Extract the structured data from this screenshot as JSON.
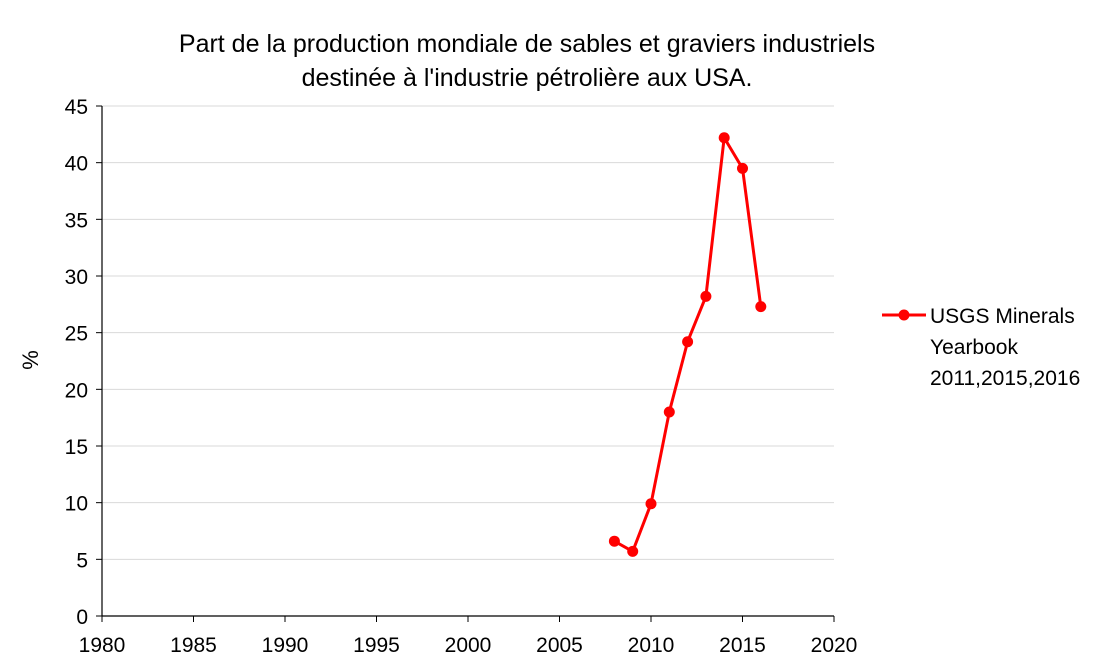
{
  "chart_data": {
    "type": "line",
    "title_lines": [
      "Part de la production mondiale de sables et graviers industriels",
      "destinée à l'industrie pétrolière aux USA."
    ],
    "xlabel": "",
    "ylabel": "%",
    "xlim": [
      1980,
      2020
    ],
    "ylim": [
      0,
      45
    ],
    "x_ticks": [
      1980,
      1985,
      1990,
      1995,
      2000,
      2005,
      2010,
      2015,
      2020
    ],
    "y_ticks": [
      0,
      5,
      10,
      15,
      20,
      25,
      30,
      35,
      40,
      45
    ],
    "grid": "horizontal",
    "legend_position": "right",
    "series": [
      {
        "name_lines": [
          "USGS Minerals",
          "Yearbook",
          "2011,2015,2016"
        ],
        "color": "#ff0000",
        "marker": "circle",
        "points": [
          {
            "x": 2008,
            "y": 6.6
          },
          {
            "x": 2009,
            "y": 5.7
          },
          {
            "x": 2010,
            "y": 9.9
          },
          {
            "x": 2011,
            "y": 18.0
          },
          {
            "x": 2012,
            "y": 24.2
          },
          {
            "x": 2013,
            "y": 28.2
          },
          {
            "x": 2014,
            "y": 42.2
          },
          {
            "x": 2015,
            "y": 39.5
          },
          {
            "x": 2016,
            "y": 27.3
          }
        ]
      }
    ]
  }
}
